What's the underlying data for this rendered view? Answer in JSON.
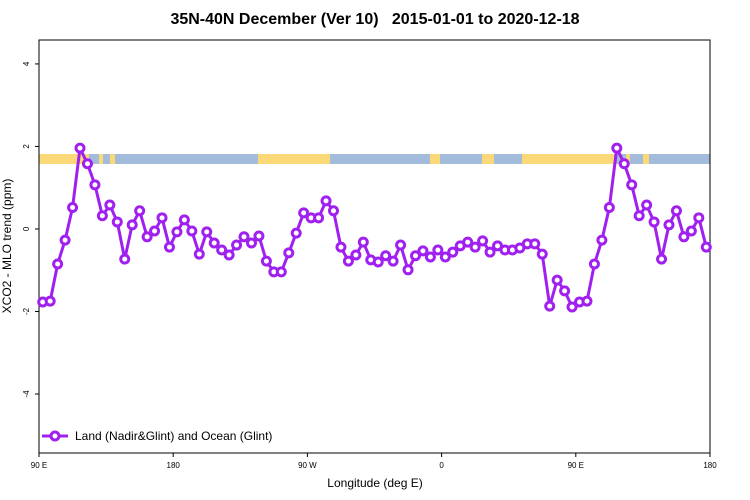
{
  "chart_data": {
    "type": "line",
    "title": "35N-40N December (Ver 10)   2015-01-01 to 2020-12-18",
    "x_label": "Longitude (deg E)",
    "y_label": "XCO2 - MLO trend (ppm)",
    "xlim": [
      90,
      540
    ],
    "xticks": [
      {
        "value": 90,
        "label": "90 E"
      },
      180,
      {
        "value": 270,
        "label": "90 W"
      },
      0,
      {
        "value": 450,
        "label": "90 E"
      },
      180
    ],
    "ylim": [
      -5.43,
      4.58
    ],
    "yticks": [
      -4,
      -2,
      0,
      2,
      4
    ],
    "x": [
      92.5,
      97.5,
      102.5,
      107.5,
      112.5,
      117.5,
      122.5,
      127.5,
      132.5,
      137.5,
      142.5,
      147.5,
      152.5,
      157.5,
      162.5,
      167.5,
      172.5,
      177.5,
      182.5,
      187.5,
      192.5,
      197.5,
      202.5,
      207.5,
      212.5,
      217.5,
      222.5,
      227.5,
      232.5,
      237.5,
      242.5,
      247.5,
      252.5,
      257.5,
      262.5,
      267.5,
      272.5,
      277.5,
      282.5,
      287.5,
      292.5,
      297.5,
      302.5,
      307.5,
      312.5,
      317.5,
      322.5,
      327.5,
      332.5,
      337.5,
      342.5,
      347.5,
      352.5,
      357.5,
      362.5,
      367.5,
      372.5,
      377.5,
      382.5,
      387.5,
      392.5,
      397.5,
      402.5,
      407.5,
      412.5,
      417.5,
      422.5,
      427.5,
      432.5,
      437.5,
      442.5,
      447.5,
      452.5,
      457.5,
      462.5,
      467.5,
      472.5,
      477.5,
      482.5,
      487.5,
      492.5,
      497.5,
      502.5,
      507.5,
      512.5,
      517.5,
      522.5,
      527.5,
      532.5,
      537.5
    ],
    "series": [
      {
        "name": "Land (Nadir&Glint) and Ocean (Glint)",
        "color": "#a020f0",
        "values": [
          -1.77,
          -1.75,
          -0.85,
          -0.27,
          0.52,
          1.96,
          1.58,
          1.07,
          0.32,
          0.58,
          0.17,
          -0.73,
          0.1,
          0.44,
          -0.19,
          -0.05,
          0.27,
          -0.44,
          -0.07,
          0.22,
          -0.05,
          -0.61,
          -0.07,
          -0.34,
          -0.51,
          -0.63,
          -0.39,
          -0.19,
          -0.34,
          -0.17,
          -0.78,
          -1.04,
          -1.04,
          -0.58,
          -0.1,
          0.39,
          0.27,
          0.27,
          0.68,
          0.44,
          -0.44,
          -0.78,
          -0.63,
          -0.32,
          -0.75,
          -0.8,
          -0.65,
          -0.78,
          -0.39,
          -0.99,
          -0.65,
          -0.53,
          -0.68,
          -0.51,
          -0.68,
          -0.56,
          -0.41,
          -0.32,
          -0.44,
          -0.29,
          -0.56,
          -0.41,
          -0.51,
          -0.51,
          -0.46,
          -0.36,
          -0.36,
          -0.61,
          -1.87,
          -1.24,
          -1.5,
          -1.89,
          -1.77,
          -1.75,
          -0.85,
          -0.27,
          0.52,
          1.96,
          1.58,
          1.07,
          0.32,
          0.58,
          0.17,
          -0.73,
          0.1,
          0.44,
          -0.19,
          -0.05,
          0.27,
          -0.44
        ]
      }
    ]
  }
}
